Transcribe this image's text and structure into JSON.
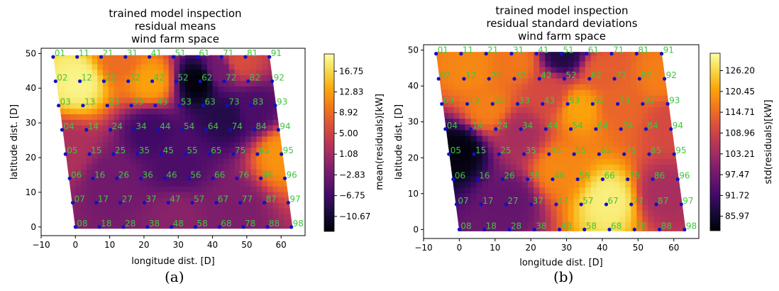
{
  "chart_data": [
    {
      "type": "heatmap",
      "panel_label": "(a)",
      "title_lines": [
        "trained model inspection",
        "residual means",
        "wind farm space"
      ],
      "xlabel": "longitude dist. [D]",
      "ylabel": "latitude dist. [D]",
      "xlim": [
        -10,
        67
      ],
      "ylim": [
        -2.5,
        51.5
      ],
      "xticks": [
        "−10",
        "0",
        "10",
        "20",
        "30",
        "40",
        "50",
        "60"
      ],
      "xtick_values": [
        -10,
        0,
        10,
        20,
        30,
        40,
        50,
        60
      ],
      "yticks": [
        "0",
        "10",
        "20",
        "30",
        "40",
        "50"
      ],
      "ytick_values": [
        0,
        10,
        20,
        30,
        40,
        50
      ],
      "colorbar": {
        "label": "mean(residuals)[kW]",
        "range": [
          -13.5,
          20.0
        ],
        "ticks": [
          "16.75",
          "12.83",
          "8.92",
          "5.00",
          "1.08",
          "−2.83",
          "−6.75",
          "−10.67"
        ],
        "tick_values": [
          16.75,
          12.83,
          8.92,
          5.0,
          1.08,
          -2.83,
          -6.75,
          -10.67
        ],
        "colormap": "inferno"
      },
      "hotspots": [
        {
          "x": 1,
          "y": 42,
          "value": 19
        },
        {
          "x": 22,
          "y": 42,
          "value": 13
        },
        {
          "x": 60,
          "y": 21,
          "value": 12
        },
        {
          "x": 13,
          "y": 48,
          "value": 9
        },
        {
          "x": 48,
          "y": 48,
          "value": 6
        },
        {
          "x": 42,
          "y": 45,
          "value": -3
        },
        {
          "x": 36,
          "y": 42,
          "value": -13
        },
        {
          "x": 44,
          "y": 32,
          "value": -9
        },
        {
          "x": 22,
          "y": 28,
          "value": -7
        },
        {
          "x": 30,
          "y": 18,
          "value": -6
        },
        {
          "x": 52,
          "y": 34,
          "value": -6
        },
        {
          "x": 10,
          "y": 14,
          "value": -3
        },
        {
          "x": 30,
          "y": 3,
          "value": -1
        },
        {
          "x": 46,
          "y": 6,
          "value": -2
        },
        {
          "x": -2,
          "y": 22,
          "value": 2
        }
      ],
      "base_value": 0
    },
    {
      "type": "heatmap",
      "panel_label": "(b)",
      "title_lines": [
        "trained model inspection",
        "residual standard deviations",
        "wind farm space"
      ],
      "xlabel": "longitude dist. [D]",
      "ylabel": "latitude dist. [D]",
      "xlim": [
        -10,
        67
      ],
      "ylim": [
        -2.5,
        51.5
      ],
      "xticks": [
        "−10",
        "0",
        "10",
        "20",
        "30",
        "40",
        "50",
        "60"
      ],
      "xtick_values": [
        -10,
        0,
        10,
        20,
        30,
        40,
        50,
        60
      ],
      "yticks": [
        "0",
        "10",
        "20",
        "30",
        "40",
        "50"
      ],
      "ytick_values": [
        0,
        10,
        20,
        30,
        40,
        50
      ],
      "colorbar": {
        "label": "std(residuals)[kW]",
        "range": [
          82.0,
          131.0
        ],
        "ticks": [
          "126.20",
          "120.45",
          "114.71",
          "108.96",
          "103.21",
          "97.47",
          "91.72",
          "85.97"
        ],
        "tick_values": [
          126.2,
          120.45,
          114.71,
          108.96,
          103.21,
          97.47,
          91.72,
          85.97
        ],
        "colormap": "inferno"
      },
      "hotspots": [
        {
          "x": 0,
          "y": 22,
          "value": 83
        },
        {
          "x": 3,
          "y": 45,
          "value": 118
        },
        {
          "x": 16,
          "y": 47,
          "value": 116
        },
        {
          "x": 29,
          "y": 49,
          "value": 88
        },
        {
          "x": 8,
          "y": 34,
          "value": 117
        },
        {
          "x": 34,
          "y": 34,
          "value": 121
        },
        {
          "x": 42,
          "y": 8,
          "value": 129
        },
        {
          "x": 28,
          "y": 17,
          "value": 118
        },
        {
          "x": 44,
          "y": 35,
          "value": 114
        },
        {
          "x": 57,
          "y": 43,
          "value": 117
        },
        {
          "x": 40,
          "y": 44,
          "value": 113
        },
        {
          "x": 17,
          "y": 27,
          "value": 104
        },
        {
          "x": 25,
          "y": 38,
          "value": 110
        },
        {
          "x": 14,
          "y": 8,
          "value": 96
        },
        {
          "x": 57,
          "y": 10,
          "value": 104
        },
        {
          "x": 60,
          "y": 30,
          "value": 110
        }
      ],
      "base_value": 106
    }
  ],
  "turbines": [
    {
      "id": "01",
      "x": -6.5,
      "y": 49
    },
    {
      "id": "02",
      "x": -5.8,
      "y": 42
    },
    {
      "id": "03",
      "x": -4.9,
      "y": 35
    },
    {
      "id": "04",
      "x": -3.9,
      "y": 28
    },
    {
      "id": "05",
      "x": -2.9,
      "y": 21
    },
    {
      "id": "06",
      "x": -1.7,
      "y": 14
    },
    {
      "id": "07",
      "x": -0.8,
      "y": 7
    },
    {
      "id": "08",
      "x": 0,
      "y": 0
    },
    {
      "id": "11",
      "x": 0.5,
      "y": 49
    },
    {
      "id": "12",
      "x": 1.3,
      "y": 42
    },
    {
      "id": "13",
      "x": 2.2,
      "y": 35
    },
    {
      "id": "14",
      "x": 3.2,
      "y": 28
    },
    {
      "id": "15",
      "x": 4.1,
      "y": 21
    },
    {
      "id": "16",
      "x": 5.1,
      "y": 14
    },
    {
      "id": "17",
      "x": 6.1,
      "y": 7
    },
    {
      "id": "18",
      "x": 7.0,
      "y": 0
    },
    {
      "id": "21",
      "x": 7.5,
      "y": 49
    },
    {
      "id": "22",
      "x": 8.3,
      "y": 42
    },
    {
      "id": "23",
      "x": 9.3,
      "y": 35
    },
    {
      "id": "24",
      "x": 10.2,
      "y": 28
    },
    {
      "id": "25",
      "x": 11.1,
      "y": 21
    },
    {
      "id": "26",
      "x": 12.1,
      "y": 14
    },
    {
      "id": "27",
      "x": 13.1,
      "y": 7
    },
    {
      "id": "28",
      "x": 14.0,
      "y": 0
    },
    {
      "id": "31",
      "x": 14.6,
      "y": 49
    },
    {
      "id": "32",
      "x": 15.4,
      "y": 42
    },
    {
      "id": "33",
      "x": 16.3,
      "y": 35
    },
    {
      "id": "34",
      "x": 17.2,
      "y": 28
    },
    {
      "id": "35",
      "x": 18.1,
      "y": 21
    },
    {
      "id": "36",
      "x": 19.1,
      "y": 14
    },
    {
      "id": "37",
      "x": 20.1,
      "y": 7
    },
    {
      "id": "38",
      "x": 21.0,
      "y": 0
    },
    {
      "id": "41",
      "x": 21.6,
      "y": 49
    },
    {
      "id": "42",
      "x": 22.4,
      "y": 42
    },
    {
      "id": "43",
      "x": 23.3,
      "y": 35
    },
    {
      "id": "44",
      "x": 24.2,
      "y": 28
    },
    {
      "id": "45",
      "x": 25.1,
      "y": 21
    },
    {
      "id": "46",
      "x": 26.1,
      "y": 14
    },
    {
      "id": "47",
      "x": 27.1,
      "y": 7
    },
    {
      "id": "48",
      "x": 28.0,
      "y": 0
    },
    {
      "id": "51",
      "x": 28.6,
      "y": 49
    },
    {
      "id": "52",
      "x": 29.4,
      "y": 42
    },
    {
      "id": "53",
      "x": 30.3,
      "y": 35
    },
    {
      "id": "54",
      "x": 31.2,
      "y": 28
    },
    {
      "id": "55",
      "x": 32.1,
      "y": 21
    },
    {
      "id": "56",
      "x": 33.1,
      "y": 14
    },
    {
      "id": "57",
      "x": 34.1,
      "y": 7
    },
    {
      "id": "58",
      "x": 35.0,
      "y": 0
    },
    {
      "id": "61",
      "x": 35.6,
      "y": 49
    },
    {
      "id": "62",
      "x": 36.4,
      "y": 42
    },
    {
      "id": "63",
      "x": 37.3,
      "y": 35
    },
    {
      "id": "64",
      "x": 38.2,
      "y": 28
    },
    {
      "id": "65",
      "x": 39.1,
      "y": 21
    },
    {
      "id": "66",
      "x": 40.1,
      "y": 14
    },
    {
      "id": "67",
      "x": 41.1,
      "y": 7
    },
    {
      "id": "68",
      "x": 42.0,
      "y": 0
    },
    {
      "id": "71",
      "x": 42.6,
      "y": 49
    },
    {
      "id": "72",
      "x": 43.4,
      "y": 42
    },
    {
      "id": "73",
      "x": 44.3,
      "y": 35
    },
    {
      "id": "74",
      "x": 45.2,
      "y": 28
    },
    {
      "id": "75",
      "x": 46.1,
      "y": 21
    },
    {
      "id": "76",
      "x": 47.1,
      "y": 14
    },
    {
      "id": "77",
      "x": 48.1,
      "y": 7
    },
    {
      "id": "78",
      "x": 49.0,
      "y": 0
    },
    {
      "id": "81",
      "x": 49.6,
      "y": 49
    },
    {
      "id": "82",
      "x": 50.4,
      "y": 42
    },
    {
      "id": "83",
      "x": 51.3,
      "y": 35
    },
    {
      "id": "84",
      "x": 52.2,
      "y": 28
    },
    {
      "id": "85",
      "x": 53.1,
      "y": 21
    },
    {
      "id": "86",
      "x": 54.1,
      "y": 14
    },
    {
      "id": "87",
      "x": 55.1,
      "y": 7
    },
    {
      "id": "88",
      "x": 56.0,
      "y": 0
    },
    {
      "id": "91",
      "x": 56.6,
      "y": 49
    },
    {
      "id": "92",
      "x": 57.4,
      "y": 42
    },
    {
      "id": "93",
      "x": 58.3,
      "y": 35
    },
    {
      "id": "94",
      "x": 59.2,
      "y": 28
    },
    {
      "id": "95",
      "x": 60.1,
      "y": 21
    },
    {
      "id": "96",
      "x": 61.1,
      "y": 14
    },
    {
      "id": "97",
      "x": 62.1,
      "y": 7
    },
    {
      "id": "98",
      "x": 63.0,
      "y": 0
    }
  ],
  "colors": {
    "turbine_dot": "#1010c8",
    "turbine_label": "#3cc83c"
  }
}
